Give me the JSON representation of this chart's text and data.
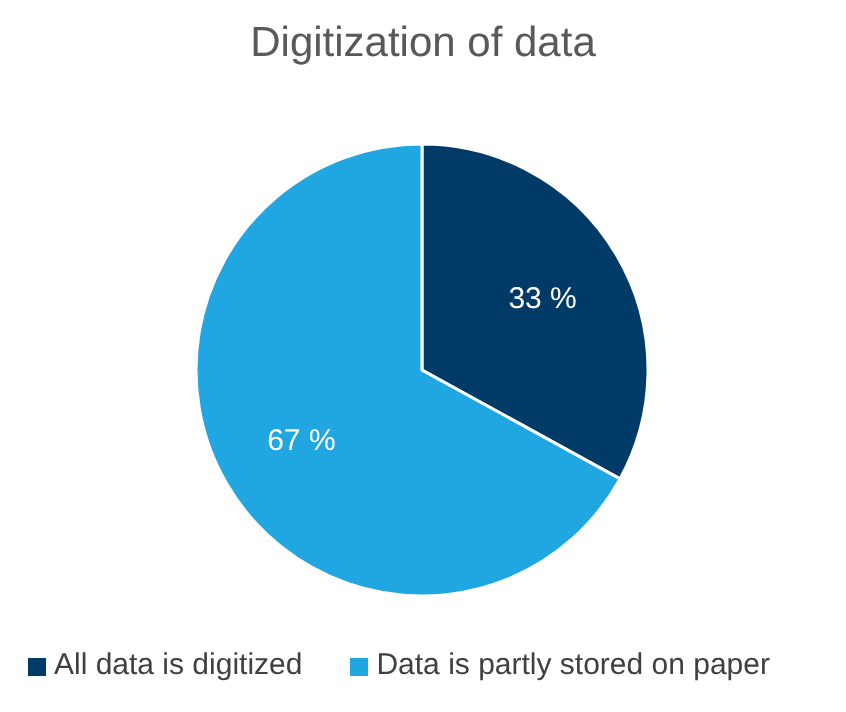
{
  "chart_data": {
    "type": "pie",
    "title": "Digitization of data",
    "categories": [
      "All data is digitized",
      "Data is partly stored on paper"
    ],
    "values": [
      33,
      67
    ],
    "colors": [
      "#003a66",
      "#20a7e1"
    ],
    "value_labels": [
      "33 %",
      "67 %"
    ],
    "legend": "bottom"
  }
}
